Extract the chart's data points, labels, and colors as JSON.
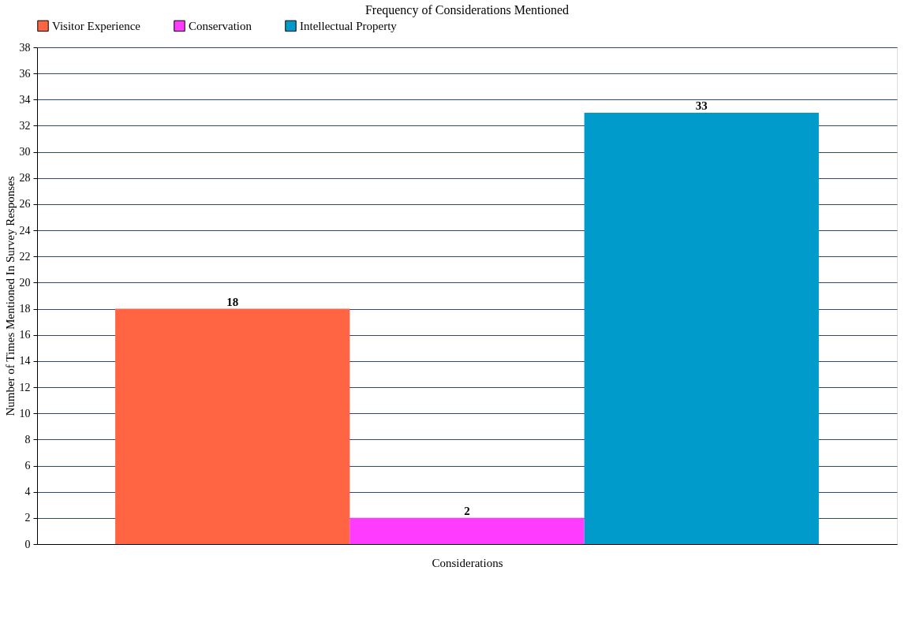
{
  "chart_data": {
    "type": "bar",
    "title": "Frequency of Considerations Mentioned",
    "xlabel": "Considerations",
    "ylabel": "Number of Times Mentioned In Survey Responses",
    "categories": [
      null
    ],
    "series": [
      {
        "name": "Visitor Experience",
        "color": "#ff6542",
        "values": [
          18
        ]
      },
      {
        "name": "Conservation",
        "color": "#ff3bff",
        "values": [
          2
        ]
      },
      {
        "name": "Intellectual Property",
        "color": "#009bcb",
        "values": [
          33
        ]
      }
    ],
    "ylim": [
      0,
      38
    ],
    "yticks": [
      0,
      2,
      4,
      6,
      8,
      10,
      12,
      14,
      16,
      18,
      20,
      22,
      24,
      26,
      28,
      30,
      32,
      34,
      36,
      38
    ],
    "grid": "y",
    "legend": "top left",
    "data_labels": true
  }
}
